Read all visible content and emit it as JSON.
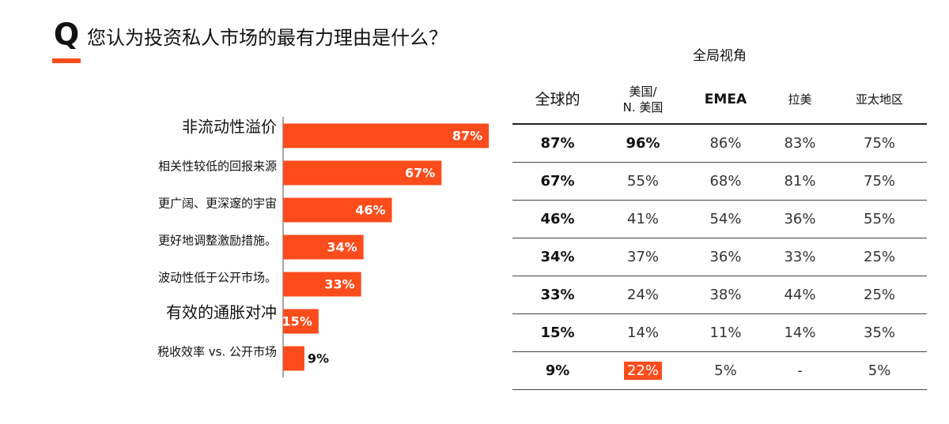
{
  "header": {
    "logo": "Q",
    "title": "您认为投资私人市场的最有力理由是什么？"
  },
  "chart_data": {
    "type": "bar",
    "orientation": "horizontal",
    "color": "#fc4c1c",
    "categories": [
      "非流动性溢价",
      "相关性较低的回报来源",
      "更广阔、更深邃的宇宙",
      "更好地调整激励措施。",
      "波动性低于公开市场。",
      "有效的通胀对冲",
      "税收效率 vs. 公开市场"
    ],
    "values": [
      87,
      67,
      46,
      34,
      33,
      15,
      9
    ],
    "value_labels": [
      "87%",
      "67%",
      "46%",
      "34%",
      "33%",
      "15%",
      "9%"
    ]
  },
  "table": {
    "title": "全局视角",
    "columns": [
      "全球的",
      "美国/\nN. 美国",
      "EMEA",
      "拉美",
      "亚太地区"
    ],
    "rows": [
      [
        "87%",
        "96%",
        "86%",
        "83%",
        "75%"
      ],
      [
        "67%",
        "55%",
        "68%",
        "81%",
        "75%"
      ],
      [
        "46%",
        "41%",
        "54%",
        "36%",
        "55%"
      ],
      [
        "34%",
        "37%",
        "36%",
        "33%",
        "25%"
      ],
      [
        "33%",
        "24%",
        "38%",
        "44%",
        "25%"
      ],
      [
        "15%",
        "14%",
        "11%",
        "14%",
        "35%"
      ],
      [
        "9%",
        "22%",
        "5%",
        "-",
        "5%"
      ]
    ]
  }
}
